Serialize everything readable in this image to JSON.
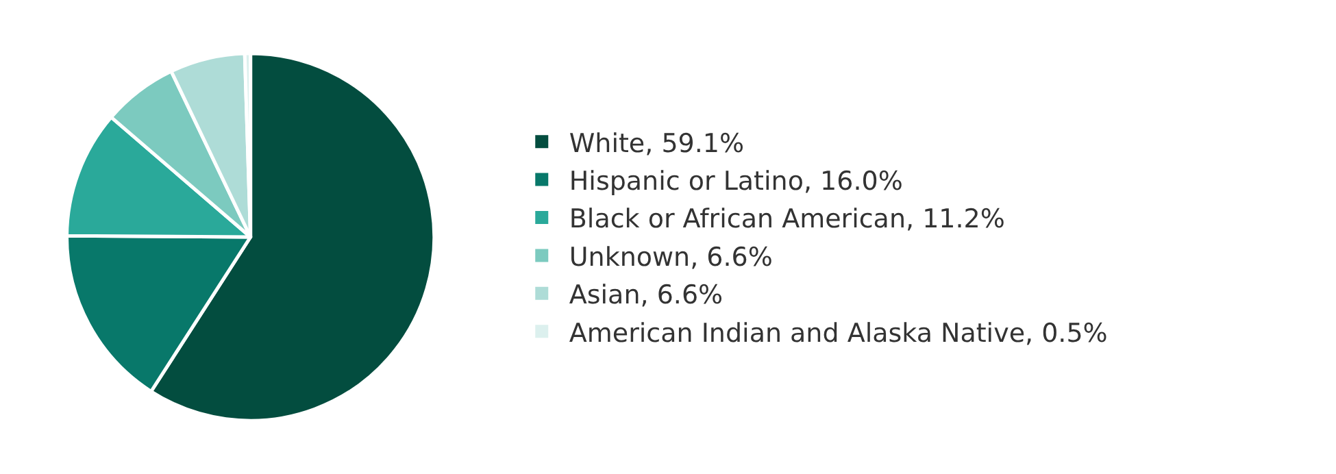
{
  "chart_data": {
    "type": "pie",
    "categories": [
      "White, 59.1%",
      "Hispanic or Latino, 16.0%",
      "Black or African American, 11.2%",
      "Unknown, 6.6%",
      "Asian, 6.6%",
      "American Indian and Alaska Native, 0.5%"
    ],
    "values": [
      59.1,
      16.0,
      11.2,
      6.6,
      6.6,
      0.5
    ],
    "colors": [
      "#034d3f",
      "#08786a",
      "#2aa99a",
      "#7ccabf",
      "#aedcd7",
      "#dcf0ee"
    ],
    "legend": "right"
  }
}
